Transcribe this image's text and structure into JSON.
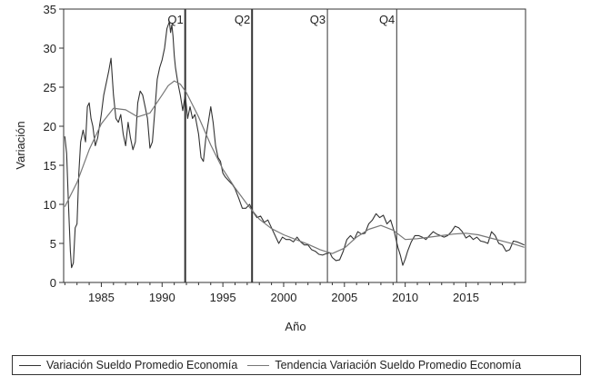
{
  "chart_data": {
    "type": "line",
    "title": "",
    "xlabel": "Año",
    "ylabel": "Variación",
    "xlim": [
      1981.9,
      2019.9
    ],
    "ylim": [
      0,
      35
    ],
    "xticks": [
      1985,
      1990,
      1995,
      2000,
      2005,
      2010,
      2015
    ],
    "yticks": [
      0,
      5,
      10,
      15,
      20,
      25,
      30,
      35
    ],
    "grid": false,
    "legend_position": "bottom",
    "colors": {
      "series": "#333333",
      "trend": "#777777",
      "axis": "#333333"
    },
    "vlines": [
      {
        "x": 1991.9,
        "label": "Q1",
        "style": "bold"
      },
      {
        "x": 1997.4,
        "label": "Q2",
        "style": "bold"
      },
      {
        "x": 2003.6,
        "label": "Q3",
        "style": "thin"
      },
      {
        "x": 2009.3,
        "label": "Q4",
        "style": "thin"
      }
    ],
    "series": [
      {
        "name": "Variación Sueldo Promedio Economía",
        "x": [
          1982.0,
          1982.15,
          1982.3,
          1982.45,
          1982.55,
          1982.7,
          1982.85,
          1983.0,
          1983.15,
          1983.3,
          1983.5,
          1983.7,
          1983.85,
          1984.0,
          1984.15,
          1984.3,
          1984.5,
          1984.7,
          1984.85,
          1985.0,
          1985.2,
          1985.4,
          1985.6,
          1985.8,
          1986.0,
          1986.2,
          1986.4,
          1986.6,
          1986.8,
          1987.0,
          1987.2,
          1987.4,
          1987.6,
          1987.8,
          1988.0,
          1988.2,
          1988.4,
          1988.6,
          1988.8,
          1989.0,
          1989.2,
          1989.4,
          1989.6,
          1989.8,
          1990.0,
          1990.2,
          1990.4,
          1990.6,
          1990.7,
          1990.8,
          1990.9,
          1991.0,
          1991.1,
          1991.3,
          1991.5,
          1991.7,
          1991.9,
          1992.1,
          1992.3,
          1992.5,
          1992.7,
          1993.0,
          1993.2,
          1993.4,
          1993.6,
          1993.8,
          1994.0,
          1994.2,
          1994.4,
          1994.6,
          1994.8,
          1995.0,
          1995.2,
          1995.5,
          1995.8,
          1996.0,
          1996.3,
          1996.6,
          1996.9,
          1997.2,
          1997.5,
          1997.8,
          1998.1,
          1998.4,
          1998.7,
          1999.0,
          1999.3,
          1999.6,
          1999.9,
          2000.2,
          2000.5,
          2000.8,
          2001.1,
          2001.4,
          2001.7,
          2002.0,
          2002.3,
          2002.6,
          2002.9,
          2003.2,
          2003.5,
          2003.8,
          2004.0,
          2004.3,
          2004.6,
          2004.9,
          2005.2,
          2005.5,
          2005.8,
          2006.1,
          2006.4,
          2006.7,
          2007.0,
          2007.3,
          2007.6,
          2007.9,
          2008.2,
          2008.5,
          2008.8,
          2009.1,
          2009.4,
          2009.6,
          2009.8,
          2010.0,
          2010.2,
          2010.5,
          2010.8,
          2011.1,
          2011.4,
          2011.7,
          2012.0,
          2012.3,
          2012.6,
          2012.9,
          2013.2,
          2013.5,
          2013.8,
          2014.1,
          2014.4,
          2014.7,
          2015.0,
          2015.3,
          2015.6,
          2015.9,
          2016.2,
          2016.5,
          2016.8,
          2017.1,
          2017.4,
          2017.7,
          2018.0,
          2018.3,
          2018.6,
          2018.9,
          2019.2,
          2019.5,
          2019.8
        ],
        "y": [
          18.7,
          16.5,
          10.0,
          4.0,
          1.9,
          2.5,
          7.0,
          7.5,
          14.0,
          18.0,
          19.5,
          18.0,
          22.5,
          23.0,
          21.0,
          20.0,
          17.5,
          18.5,
          20.0,
          21.5,
          24.0,
          25.5,
          27.0,
          28.7,
          24.0,
          21.0,
          20.5,
          21.5,
          19.0,
          17.5,
          20.5,
          18.5,
          17.0,
          18.0,
          23.0,
          24.5,
          24.0,
          22.5,
          21.0,
          17.2,
          18.0,
          22.0,
          26.0,
          27.5,
          28.5,
          30.0,
          32.5,
          33.4,
          32.0,
          33.0,
          31.5,
          29.0,
          27.5,
          25.5,
          24.0,
          22.0,
          24.0,
          21.0,
          22.5,
          21.0,
          21.5,
          19.0,
          16.0,
          15.5,
          18.5,
          20.5,
          22.5,
          20.5,
          17.5,
          16.0,
          15.5,
          14.0,
          13.5,
          13.0,
          12.5,
          12.0,
          10.8,
          9.5,
          9.5,
          10.0,
          9.0,
          8.3,
          8.5,
          7.7,
          8.0,
          7.0,
          6.0,
          5.0,
          5.8,
          5.5,
          5.5,
          5.2,
          5.8,
          5.2,
          4.8,
          4.8,
          4.2,
          4.0,
          3.6,
          3.5,
          3.7,
          3.8,
          3.2,
          2.8,
          2.9,
          4.0,
          5.5,
          6.0,
          5.5,
          6.5,
          6.2,
          6.3,
          7.5,
          8.0,
          8.8,
          8.3,
          8.6,
          7.5,
          8.0,
          6.5,
          4.5,
          3.5,
          2.2,
          3.0,
          4.0,
          5.2,
          6.0,
          6.0,
          5.8,
          5.5,
          6.0,
          6.5,
          6.2,
          6.0,
          5.8,
          6.0,
          6.5,
          7.2,
          7.0,
          6.5,
          5.7,
          6.0,
          5.5,
          5.8,
          5.3,
          5.2,
          5.0,
          6.5,
          6.0,
          5.0,
          4.8,
          4.0,
          4.2,
          5.3,
          5.2,
          5.0,
          4.8
        ]
      },
      {
        "name": "Tendencia Variación Sueldo Promedio Economía",
        "x": [
          1982.0,
          1983.0,
          1984.0,
          1985.0,
          1986.0,
          1987.0,
          1988.0,
          1989.0,
          1990.0,
          1990.5,
          1991.0,
          1991.5,
          1992.0,
          1993.0,
          1994.0,
          1995.0,
          1996.0,
          1997.0,
          1998.0,
          1999.0,
          2000.0,
          2001.0,
          2002.0,
          2003.0,
          2004.0,
          2005.0,
          2006.0,
          2007.0,
          2008.0,
          2009.0,
          2010.0,
          2011.0,
          2012.0,
          2013.0,
          2014.0,
          2015.0,
          2016.0,
          2017.0,
          2018.0,
          2019.0,
          2019.8
        ],
        "y": [
          9.7,
          12.8,
          17.0,
          20.3,
          22.3,
          22.1,
          21.2,
          21.7,
          24.0,
          25.2,
          25.8,
          25.4,
          24.3,
          21.2,
          17.6,
          14.5,
          12.1,
          10.0,
          8.1,
          6.9,
          6.1,
          5.5,
          4.9,
          4.2,
          3.7,
          4.4,
          5.8,
          6.8,
          7.3,
          6.7,
          5.5,
          5.6,
          5.8,
          6.0,
          6.2,
          6.3,
          6.1,
          5.7,
          5.3,
          4.9,
          4.5
        ]
      }
    ]
  },
  "legend": {
    "items": [
      {
        "label": "Variación Sueldo Promedio Economía"
      },
      {
        "label": "Tendencia Variación Sueldo Promedio Economía"
      }
    ]
  }
}
